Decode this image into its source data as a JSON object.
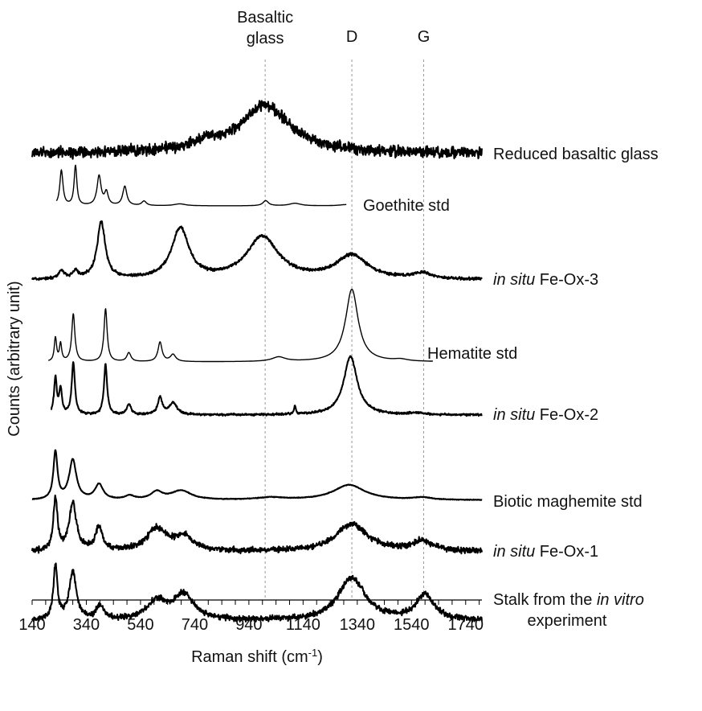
{
  "chart_data": {
    "type": "line",
    "xlabel": "Raman shift (cm",
    "xlabel_sup": "-1",
    "xlabel_end": ")",
    "ylabel": "Counts (arbitrary unit)",
    "xlim": [
      140,
      1800
    ],
    "xticks": [
      "140",
      "340",
      "540",
      "740",
      "940",
      "1140",
      "1340",
      "1540",
      "1740"
    ],
    "grid": false,
    "reference_lines": [
      {
        "x": 1000,
        "label_lines": [
          "Basaltic",
          "glass"
        ]
      },
      {
        "x": 1320,
        "label_lines": [
          "D"
        ]
      },
      {
        "x": 1585,
        "label_lines": [
          "G"
        ]
      }
    ],
    "series": [
      {
        "key": "reduced_basaltic_glass",
        "label_parts": [
          {
            "t": "Reduced basaltic glass",
            "i": false
          }
        ],
        "style": "sample",
        "noise": 0.05,
        "seed": 11,
        "baseline": 0.04,
        "x_range": [
          140,
          1800
        ],
        "peaks": [
          [
            1000,
            0.46,
            110
          ],
          [
            780,
            0.07,
            70
          ]
        ]
      },
      {
        "key": "goethite_std",
        "label_parts": [
          {
            "t": "Goethite std",
            "i": false
          }
        ],
        "style": "std",
        "noise": 0,
        "seed": 0,
        "baseline": 0,
        "x_range": [
          230,
          1300
        ],
        "peaks": [
          [
            248,
            0.55,
            7
          ],
          [
            300,
            0.62,
            6
          ],
          [
            387,
            0.46,
            9
          ],
          [
            414,
            0.2,
            8
          ],
          [
            482,
            0.3,
            9
          ],
          [
            553,
            0.07,
            10
          ],
          [
            685,
            0.03,
            25
          ],
          [
            1002,
            0.08,
            12
          ],
          [
            1110,
            0.04,
            25
          ],
          [
            1300,
            0.02,
            30
          ]
        ]
      },
      {
        "key": "in_situ_fe_ox_3",
        "label_parts": [
          {
            "t": "in situ",
            "i": true
          },
          {
            "t": " Fe-Ox-3",
            "i": false
          }
        ],
        "style": "sample",
        "noise": 0.018,
        "seed": 23,
        "baseline": 0.0,
        "x_range": [
          140,
          1800
        ],
        "peaks": [
          [
            248,
            0.1,
            12
          ],
          [
            300,
            0.1,
            12
          ],
          [
            395,
            0.72,
            18
          ],
          [
            687,
            0.64,
            38
          ],
          [
            990,
            0.54,
            70
          ],
          [
            1320,
            0.3,
            70
          ],
          [
            1580,
            0.07,
            40
          ]
        ]
      },
      {
        "key": "hematite_std",
        "label_parts": [
          {
            "t": "Hematite std",
            "i": false
          }
        ],
        "style": "std",
        "noise": 0,
        "seed": 0,
        "baseline": 0,
        "x_range": [
          200,
          1620
        ],
        "peaks": [
          [
            226,
            0.27,
            5
          ],
          [
            245,
            0.2,
            5
          ],
          [
            292,
            0.54,
            7
          ],
          [
            411,
            0.6,
            7
          ],
          [
            497,
            0.1,
            9
          ],
          [
            612,
            0.22,
            9
          ],
          [
            660,
            0.08,
            12
          ],
          [
            1050,
            0.05,
            30
          ],
          [
            1320,
            0.82,
            28
          ],
          [
            1500,
            0.02,
            30
          ]
        ]
      },
      {
        "key": "in_situ_fe_ox_2",
        "label_parts": [
          {
            "t": "in situ",
            "i": true
          },
          {
            "t": " Fe-Ox-2",
            "i": false
          }
        ],
        "style": "sample",
        "noise": 0.012,
        "seed": 37,
        "baseline": 0.0,
        "x_range": [
          210,
          1800
        ],
        "peaks": [
          [
            226,
            0.44,
            6
          ],
          [
            245,
            0.3,
            6
          ],
          [
            292,
            0.62,
            7
          ],
          [
            411,
            0.6,
            7
          ],
          [
            497,
            0.12,
            10
          ],
          [
            612,
            0.2,
            10
          ],
          [
            660,
            0.14,
            18
          ],
          [
            1110,
            0.1,
            4
          ],
          [
            1315,
            0.7,
            30
          ],
          [
            1560,
            0.02,
            30
          ]
        ]
      },
      {
        "key": "biotic_maghemite_std",
        "label_parts": [
          {
            "t": "Biotic maghemite std",
            "i": false
          }
        ],
        "style": "sample",
        "noise": 0.004,
        "seed": 41,
        "baseline": 0.0,
        "x_range": [
          140,
          1800
        ],
        "peaks": [
          [
            226,
            0.62,
            9
          ],
          [
            290,
            0.52,
            16
          ],
          [
            387,
            0.2,
            18
          ],
          [
            500,
            0.05,
            20
          ],
          [
            600,
            0.1,
            25
          ],
          [
            690,
            0.12,
            45
          ],
          [
            1020,
            0.03,
            60
          ],
          [
            1310,
            0.2,
            70
          ],
          [
            1580,
            0.03,
            40
          ]
        ]
      },
      {
        "key": "in_situ_fe_ox_1",
        "label_parts": [
          {
            "t": "in situ",
            "i": true
          },
          {
            "t": " Fe-Ox-1",
            "i": false
          }
        ],
        "style": "sample",
        "noise": 0.035,
        "seed": 53,
        "baseline": 0.0,
        "x_range": [
          140,
          1800
        ],
        "peaks": [
          [
            226,
            0.66,
            9
          ],
          [
            290,
            0.6,
            16
          ],
          [
            387,
            0.3,
            15
          ],
          [
            600,
            0.28,
            45
          ],
          [
            700,
            0.18,
            40
          ],
          [
            1320,
            0.35,
            70
          ],
          [
            1580,
            0.12,
            45
          ]
        ]
      },
      {
        "key": "stalk_in_vitro",
        "label_parts": [
          {
            "t": "Stalk from the ",
            "i": false
          },
          {
            "t": "in vitro",
            "i": true
          }
        ],
        "label_line2": "experiment",
        "style": "sample",
        "noise": 0.035,
        "seed": 67,
        "baseline": 0.0,
        "x_range": [
          140,
          1800
        ],
        "peaks": [
          [
            226,
            0.72,
            9
          ],
          [
            290,
            0.65,
            16
          ],
          [
            390,
            0.18,
            18
          ],
          [
            600,
            0.25,
            45
          ],
          [
            700,
            0.34,
            45
          ],
          [
            1320,
            0.58,
            60
          ],
          [
            1590,
            0.34,
            40
          ]
        ]
      }
    ]
  }
}
